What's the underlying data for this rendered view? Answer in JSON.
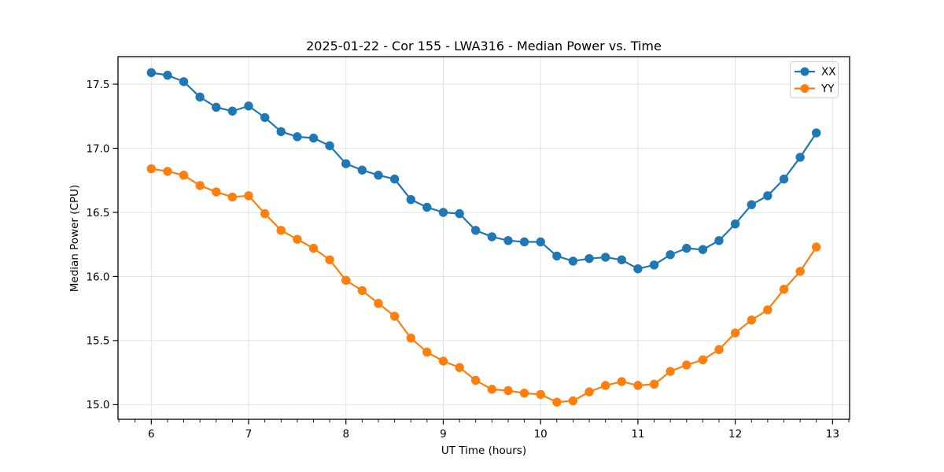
{
  "chart_data": {
    "type": "line",
    "title": "2025-01-22 - Cor 155 - LWA316 - Median Power vs. Time",
    "xlabel": "UT Time (hours)",
    "ylabel": "Median Power (CPU)",
    "xlim": [
      5.658,
      13.175
    ],
    "ylim": [
      14.886,
      17.715
    ],
    "x_ticks": [
      6,
      7,
      8,
      9,
      10,
      11,
      12,
      13
    ],
    "x_minor_tick_step": 0.166667,
    "y_ticks": [
      15.0,
      15.5,
      16.0,
      16.5,
      17.0,
      17.5
    ],
    "grid": true,
    "legend_position": "upper right",
    "x": [
      6.0,
      6.167,
      6.333,
      6.5,
      6.667,
      6.833,
      7.0,
      7.167,
      7.333,
      7.5,
      7.667,
      7.833,
      8.0,
      8.167,
      8.333,
      8.5,
      8.667,
      8.833,
      9.0,
      9.167,
      9.333,
      9.5,
      9.667,
      9.833,
      10.0,
      10.167,
      10.333,
      10.5,
      10.667,
      10.833,
      11.0,
      11.167,
      11.333,
      11.5,
      11.667,
      11.833,
      12.0,
      12.167,
      12.333,
      12.5,
      12.667,
      12.833
    ],
    "series": [
      {
        "name": "XX",
        "color": "#1f77b4",
        "marker": "circle",
        "values": [
          17.59,
          17.57,
          17.52,
          17.4,
          17.32,
          17.29,
          17.33,
          17.24,
          17.13,
          17.09,
          17.08,
          17.02,
          16.88,
          16.83,
          16.79,
          16.76,
          16.6,
          16.54,
          16.5,
          16.49,
          16.36,
          16.31,
          16.28,
          16.27,
          16.27,
          16.16,
          16.12,
          16.14,
          16.15,
          16.13,
          16.06,
          16.09,
          16.17,
          16.22,
          16.21,
          16.28,
          16.41,
          16.56,
          16.63,
          16.76,
          16.93,
          17.12
        ]
      },
      {
        "name": "YY",
        "color": "#ff7f0e",
        "marker": "circle",
        "values": [
          16.84,
          16.82,
          16.79,
          16.71,
          16.66,
          16.62,
          16.63,
          16.49,
          16.36,
          16.29,
          16.22,
          16.13,
          15.97,
          15.89,
          15.79,
          15.69,
          15.52,
          15.41,
          15.34,
          15.29,
          15.19,
          15.12,
          15.11,
          15.09,
          15.08,
          15.02,
          15.03,
          15.1,
          15.15,
          15.18,
          15.15,
          15.16,
          15.26,
          15.31,
          15.35,
          15.43,
          15.56,
          15.66,
          15.74,
          15.9,
          16.04,
          16.23
        ]
      }
    ]
  },
  "colors": {
    "background": "#ffffff",
    "grid": "#e2e2e2",
    "spine": "#000000",
    "text": "#000000",
    "legend_border": "#cccccc"
  }
}
